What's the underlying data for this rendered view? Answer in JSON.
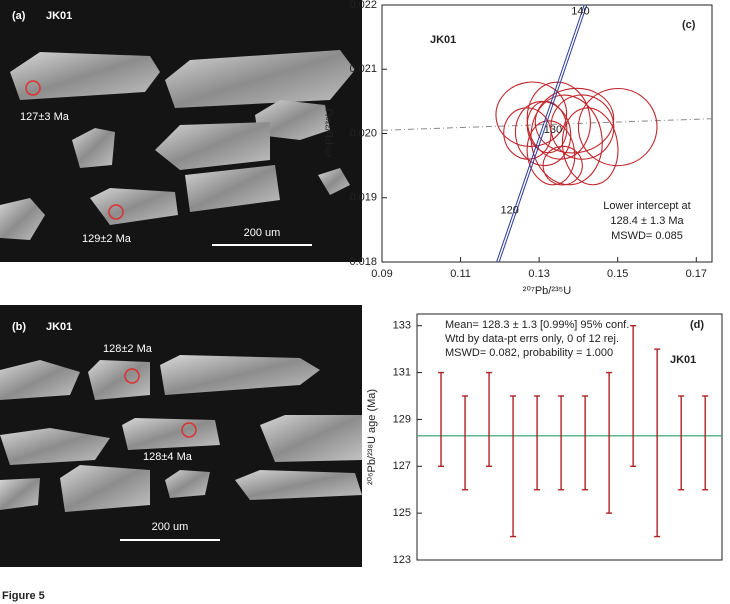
{
  "figure_label": "Figure 5",
  "images": [
    {
      "label": "(a)",
      "sample": "JK01",
      "annotations": [
        "127±3 Ma",
        "129±2 Ma"
      ],
      "scale_bar": "200 um"
    },
    {
      "label": "(b)",
      "sample": "JK01",
      "annotations": [
        "128±2 Ma",
        "128±4 Ma"
      ],
      "scale_bar": "200 um"
    }
  ],
  "chart_data": [
    {
      "type": "ellipse",
      "panel_label": "(c)",
      "sample": "JK01",
      "xlabel": "²⁰⁷Pb/²³⁵U",
      "ylabel": "²⁰⁶Pb/²³⁸U",
      "annotations": [
        "Lower intercept at",
        "128.4 ± 1.3 Ma",
        "MSWD= 0.085"
      ],
      "x": [
        0.128,
        0.135,
        0.141,
        0.15,
        0.131,
        0.137,
        0.127,
        0.133,
        0.139,
        0.132,
        0.143,
        0.136
      ],
      "values": [
        0.0203,
        0.0202,
        0.0201,
        0.0201,
        0.02,
        0.0199,
        0.02,
        0.0197,
        0.0202,
        0.0201,
        0.0198,
        0.0195
      ],
      "x_err": [
        0.009,
        0.008,
        0.008,
        0.01,
        0.007,
        0.009,
        0.006,
        0.006,
        0.01,
        0.005,
        0.007,
        0.005
      ],
      "y_err": [
        0.0005,
        0.0006,
        0.0005,
        0.0006,
        0.0005,
        0.0007,
        0.0004,
        0.0005,
        0.0005,
        0.0004,
        0.0006,
        0.0003
      ],
      "color": "#c0272d",
      "concordia": {
        "x": [
          0.1195,
          0.1418
        ],
        "values": [
          0.018,
          0.022
        ],
        "color": "#2b3a9e"
      },
      "concordia_ages": {
        "labels": [
          120,
          130,
          140
        ],
        "x": [
          0.1225,
          0.1335,
          0.1405
        ],
        "values": [
          0.0188,
          0.02005,
          0.0219
        ]
      },
      "discordia": {
        "x": [
          0.09,
          0.174
        ],
        "values": [
          0.02005,
          0.02023
        ]
      },
      "xlim": [
        0.09,
        0.174
      ],
      "xticks": [
        0.09,
        0.11,
        0.13,
        0.15,
        0.17
      ],
      "ylim": [
        0.018,
        0.022
      ],
      "yticks": [
        0.018,
        0.019,
        {
          "value": 0.02,
          "label": "0.020"
        },
        0.021,
        0.022
      ]
    },
    {
      "type": "errorbar",
      "panel_label": "(d)",
      "sample": "JK01",
      "ylabel": "²⁰⁶Pb/²³⁸U age (Ma)",
      "annotations": [
        "Mean= 128.3 ± 1.3  [0.99%]  95% conf.",
        "Wtd by data-pt errs only, 0 of 12 rej.",
        "MSWD= 0.082, probability = 1.000"
      ],
      "x": [
        1,
        2,
        3,
        4,
        5,
        6,
        7,
        8,
        9,
        10,
        11,
        12
      ],
      "values": [
        129,
        128,
        129,
        127,
        128,
        128,
        128,
        128,
        130,
        128,
        128,
        128
      ],
      "errors": [
        2,
        2,
        2,
        3,
        2,
        2,
        2,
        3,
        3,
        4,
        2,
        2
      ],
      "color": "#b22222",
      "mean": 128.3,
      "mean_color": "#2e9e6e",
      "xlim": [
        0,
        12.7
      ],
      "ylim": [
        123,
        133.5
      ],
      "yticks": [
        123,
        125,
        127,
        129,
        131,
        133
      ]
    }
  ]
}
